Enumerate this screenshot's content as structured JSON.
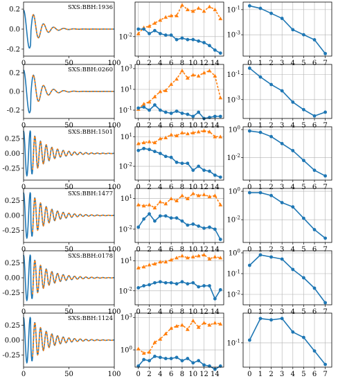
{
  "colors": {
    "blue": "#1f77b4",
    "orange": "#ff7f0e"
  },
  "chart_data": [
    {
      "type": "line",
      "grid": false,
      "x_ticks": [
        0,
        50,
        100
      ],
      "rows": [
        {
          "label": "SXS:BBH:1936",
          "amp": 0.19,
          "ylim": [
            -0.27,
            0.27
          ],
          "yticks": [
            "-0.2",
            "0.0",
            "0.2"
          ],
          "ytick_values": [
            -0.2,
            0,
            0.2
          ]
        },
        {
          "label": "SXS:BBH:0260",
          "amp": 0.23,
          "ylim": [
            -0.29,
            0.29
          ],
          "yticks": [
            "-0.2",
            "0.0",
            "0.2"
          ],
          "ytick_values": [
            -0.2,
            0,
            0.2
          ]
        },
        {
          "label": "SXS:BBH:1501",
          "amp": 0.38,
          "ylim": [
            -0.45,
            0.45
          ],
          "yticks": [
            "-0.25",
            "0.00",
            "0.25"
          ],
          "ytick_values": [
            -0.25,
            0,
            0.25
          ]
        },
        {
          "label": "SXS:BBH:1477",
          "amp": 0.38,
          "ylim": [
            -0.45,
            0.45
          ],
          "yticks": [
            "-0.25",
            "0.00",
            "0.25"
          ],
          "ytick_values": [
            -0.25,
            0,
            0.25
          ]
        },
        {
          "label": "SXS:BBH:0178",
          "amp": 0.38,
          "ylim": [
            -0.45,
            0.45
          ],
          "yticks": [
            "-0.25",
            "0.00",
            "0.25"
          ],
          "ytick_values": [
            -0.25,
            0,
            0.25
          ]
        },
        {
          "label": "SXS:BBH:1124",
          "amp": 0.38,
          "ylim": [
            -0.45,
            0.45
          ],
          "yticks": [
            "-0.25",
            "0.00",
            "0.25"
          ],
          "ytick_values": [
            -0.25,
            0,
            0.25
          ]
        }
      ]
    },
    {
      "type": "line",
      "grid": true,
      "yscale": "log",
      "x": [
        0,
        1,
        2,
        3,
        4,
        5,
        6,
        7,
        8,
        9,
        10,
        11,
        12,
        13,
        14,
        15
      ],
      "x_ticks": [
        0,
        2,
        4,
        6,
        8,
        10,
        12,
        14
      ],
      "rows": [
        {
          "ylim_log10": [
            -3.3,
            0.3
          ],
          "yticks": [
            {
              "text": "10",
              "exp": "-2",
              "log": -2
            }
          ],
          "blue_log10": [
            -1.5,
            -1.5,
            -1.8,
            -1.6,
            -1.8,
            -1.9,
            -1.9,
            -2.2,
            -2.1,
            -2.2,
            -2.2,
            -2.3,
            -2.4,
            -2.6,
            -2.9,
            -3.1
          ],
          "orange_log10": [
            -1.8,
            -1.4,
            -1.3,
            -1.1,
            -0.9,
            -0.7,
            -0.6,
            -0.6,
            0.1,
            -0.2,
            -0.3,
            -0.1,
            -0.3,
            0.0,
            -0.2,
            -0.8
          ]
        },
        {
          "ylim_log10": [
            -1.8,
            3.4
          ],
          "yticks": [
            {
              "text": "10",
              "exp": "-1",
              "log": -1
            },
            {
              "text": "10",
              "exp": "1",
              "log": 1
            },
            {
              "text": "10",
              "exp": "3",
              "log": 3
            }
          ],
          "blue_log10": [
            -0.8,
            -0.7,
            -1.0,
            -0.5,
            -1.0,
            -1.2,
            -1.3,
            -1.1,
            -1.3,
            -1.4,
            -1.6,
            -1.2,
            -1.8,
            -1.7,
            -1.6,
            -1.6
          ],
          "orange_log10": [
            -0.9,
            -0.4,
            -0.2,
            0.3,
            0.8,
            0.9,
            1.5,
            2.0,
            2.8,
            2.1,
            2.4,
            2.3,
            2.6,
            2.8,
            2.3,
            0.2
          ]
        },
        {
          "ylim_log10": [
            -3.4,
            2.0
          ],
          "yticks": [
            {
              "text": "10",
              "exp": "-2",
              "log": -2
            },
            {
              "text": "10",
              "exp": "1",
              "log": 1
            }
          ],
          "blue_log10": [
            -0.4,
            -0.2,
            -0.3,
            -0.5,
            -0.7,
            -1.0,
            -1.1,
            -1.6,
            -1.7,
            -1.7,
            -2.4,
            -2.0,
            -2.4,
            -2.5,
            -2.9,
            -3.1
          ],
          "orange_log10": [
            0.3,
            0.4,
            0.5,
            0.4,
            0.8,
            0.9,
            1.2,
            1.1,
            1.4,
            1.3,
            1.4,
            1.5,
            1.6,
            1.5,
            1.0,
            1.0
          ]
        },
        {
          "ylim_log10": [
            -3.3,
            2.0
          ],
          "yticks": [
            {
              "text": "10",
              "exp": "-2",
              "log": -2
            },
            {
              "text": "10",
              "exp": "1",
              "log": 1
            }
          ],
          "blue_log10": [
            -1.8,
            -1.0,
            -0.5,
            -1.2,
            -0.7,
            -0.7,
            -0.9,
            -0.9,
            -1.2,
            -1.6,
            -1.5,
            -1.7,
            -1.9,
            -1.8,
            -2.0,
            -3.0
          ],
          "orange_log10": [
            0.4,
            0.3,
            0.4,
            0.1,
            0.7,
            0.5,
            1.0,
            0.8,
            1.3,
            1.0,
            1.5,
            1.3,
            1.4,
            1.2,
            1.3,
            0.4
          ]
        },
        {
          "ylim_log10": [
            -3.4,
            2.0
          ],
          "yticks": [
            {
              "text": "10",
              "exp": "-2",
              "log": -2
            },
            {
              "text": "10",
              "exp": "1",
              "log": 1
            }
          ],
          "blue_log10": [
            -1.7,
            -1.5,
            -1.4,
            -1.2,
            -1.1,
            -1.2,
            -1.2,
            -1.3,
            -1.1,
            -1.3,
            -1.2,
            -1.6,
            -1.5,
            -1.5,
            -2.8,
            -1.9
          ],
          "orange_log10": [
            0.3,
            0.4,
            0.6,
            0.7,
            0.9,
            0.9,
            1.1,
            1.3,
            1.5,
            1.3,
            1.4,
            1.5,
            1.6,
            1.2,
            1.4,
            1.3
          ]
        },
        {
          "ylim_log10": [
            -1.6,
            3.4
          ],
          "yticks": [
            {
              "text": "10",
              "exp": "0",
              "log": 0
            },
            {
              "text": "10",
              "exp": "3",
              "log": 3
            }
          ],
          "blue_log10": [
            -1.5,
            -0.9,
            -1.0,
            -0.6,
            -0.7,
            -0.8,
            -0.8,
            -0.7,
            -1.0,
            -0.8,
            -1.2,
            -1.0,
            -1.4,
            -1.5,
            -1.8,
            -1.5
          ],
          "orange_log10": [
            0.1,
            -0.3,
            -0.2,
            0.7,
            1.0,
            1.5,
            2.0,
            2.2,
            2.3,
            1.9,
            2.7,
            2.1,
            2.5,
            2.3,
            2.5,
            2.4
          ]
        }
      ]
    },
    {
      "type": "line",
      "grid": true,
      "yscale": "log",
      "x": [
        0,
        1,
        2,
        3,
        4,
        5,
        6,
        7
      ],
      "x_ticks": [
        0,
        1,
        2,
        3,
        4,
        5,
        6,
        7
      ],
      "rows": [
        {
          "ylim_log10": [
            -4.7,
            -0.4
          ],
          "yticks": [
            {
              "text": "10",
              "exp": "-1",
              "log": -1
            },
            {
              "text": "10",
              "exp": "-3",
              "log": -3
            }
          ],
          "blue_log10": [
            -0.7,
            -0.9,
            -1.3,
            -1.7,
            -2.6,
            -3.0,
            -3.4,
            -4.5
          ]
        },
        {
          "ylim_log10": [
            -4.5,
            -0.2
          ],
          "yticks": [
            {
              "text": "10",
              "exp": "-1",
              "log": -1
            },
            {
              "text": "10",
              "exp": "-3",
              "log": -3
            }
          ],
          "blue_log10": [
            -0.5,
            -1.2,
            -1.8,
            -2.3,
            -3.2,
            -3.8,
            -4.3,
            -4.0
          ]
        },
        {
          "ylim_log10": [
            -3.6,
            0.2
          ],
          "yticks": [
            {
              "text": "10",
              "exp": "0",
              "log": 0
            },
            {
              "text": "10",
              "exp": "-2",
              "log": -2
            }
          ],
          "blue_log10": [
            -0.1,
            -0.2,
            -0.5,
            -1.0,
            -1.5,
            -2.2,
            -2.9,
            -3.3
          ]
        },
        {
          "ylim_log10": [
            -3.6,
            0.2
          ],
          "yticks": [
            {
              "text": "10",
              "exp": "0",
              "log": 0
            },
            {
              "text": "10",
              "exp": "-2",
              "log": -2
            }
          ],
          "blue_log10": [
            -0.1,
            -0.1,
            -0.3,
            -0.8,
            -1.1,
            -1.9,
            -2.7,
            -3.3
          ]
        },
        {
          "ylim_log10": [
            -2.5,
            0.1
          ],
          "yticks": [
            {
              "text": "10",
              "exp": "0",
              "log": 0
            },
            {
              "text": "10",
              "exp": "-1",
              "log": -1
            },
            {
              "text": "10",
              "exp": "-2",
              "log": -2
            }
          ],
          "blue_log10": [
            -0.6,
            -0.1,
            -0.2,
            -0.3,
            -0.8,
            -1.2,
            -1.7,
            -2.4
          ]
        },
        {
          "ylim_log10": [
            -1.9,
            0.1
          ],
          "yticks": [
            {
              "text": "10",
              "exp": "-1",
              "log": -1
            }
          ],
          "blue_log10": [
            -0.9,
            -0.1,
            -0.15,
            -0.1,
            -0.6,
            -0.8,
            -1.3,
            -1.8
          ]
        }
      ]
    }
  ]
}
